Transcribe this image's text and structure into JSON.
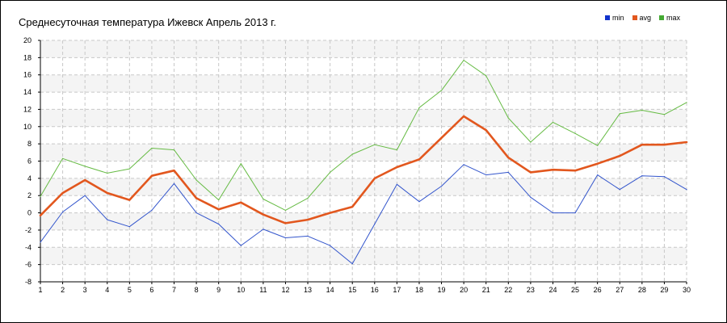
{
  "chart_data": {
    "type": "line",
    "title": "Среднесуточная температура Ижевск  Апрель 2013 г.",
    "x": [
      1,
      2,
      3,
      4,
      5,
      6,
      7,
      8,
      9,
      10,
      11,
      12,
      13,
      14,
      15,
      16,
      17,
      18,
      19,
      20,
      21,
      22,
      23,
      24,
      25,
      26,
      27,
      28,
      29,
      30
    ],
    "x_tick_labels": [
      "1",
      "2",
      "3",
      "4",
      "5",
      "6",
      "7",
      "8",
      "9",
      "10",
      "11",
      "12",
      "13",
      "14",
      "15",
      "16",
      "17",
      "18",
      "19",
      "20",
      "21",
      "22",
      "23",
      "24",
      "25",
      "26",
      "27",
      "28",
      "29",
      "30"
    ],
    "y_tick_labels": [
      "20",
      "18",
      "16",
      "14",
      "12",
      "10",
      "8",
      "6",
      "4",
      "2",
      "0",
      "-2",
      "-4",
      "-6",
      "-8"
    ],
    "ylim": [
      -8,
      20
    ],
    "xlim": [
      1,
      30
    ],
    "grid": true,
    "legend_position": "top-right",
    "series": [
      {
        "name": "min",
        "color": "#3355cc",
        "values": [
          -3.4,
          0.1,
          2.0,
          -0.8,
          -1.6,
          0.3,
          3.4,
          0.0,
          -1.3,
          -3.8,
          -1.9,
          -2.9,
          -2.7,
          -3.8,
          -5.9,
          -1.3,
          3.3,
          1.3,
          3.1,
          5.6,
          4.4,
          4.7,
          1.8,
          0.0,
          0.0,
          4.4,
          2.7,
          4.3,
          4.2,
          2.7
        ]
      },
      {
        "name": "avg",
        "color": "#e2571e",
        "values": [
          -0.3,
          2.3,
          3.8,
          2.3,
          1.5,
          4.3,
          4.9,
          1.7,
          0.4,
          1.2,
          -0.2,
          -1.2,
          -0.8,
          0.0,
          0.7,
          4.0,
          5.3,
          6.2,
          8.7,
          11.2,
          9.6,
          6.4,
          4.7,
          5.0,
          4.9,
          5.7,
          6.6,
          7.9,
          7.9,
          8.2
        ]
      },
      {
        "name": "max",
        "color": "#66bb44",
        "values": [
          1.9,
          6.3,
          5.4,
          4.6,
          5.1,
          7.5,
          7.3,
          3.8,
          1.5,
          5.7,
          1.6,
          0.3,
          1.7,
          4.7,
          6.8,
          7.9,
          7.3,
          12.2,
          14.2,
          17.7,
          15.9,
          11.0,
          8.2,
          10.5,
          9.2,
          7.8,
          11.5,
          11.9,
          11.4,
          12.8
        ]
      }
    ]
  }
}
